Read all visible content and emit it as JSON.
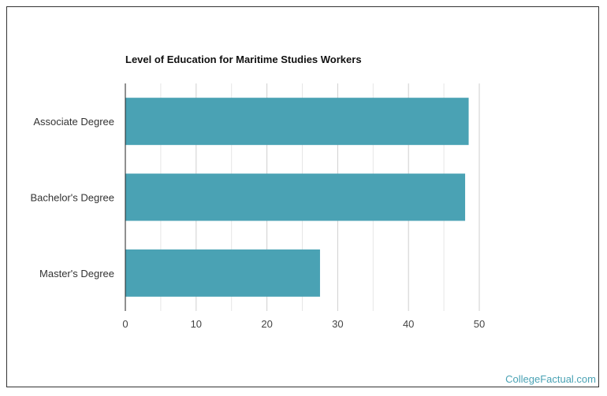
{
  "chart_data": {
    "type": "bar",
    "orientation": "horizontal",
    "title": "Level of Education for Maritime Studies Workers",
    "categories": [
      "Associate Degree",
      "Bachelor's Degree",
      "Master's Degree"
    ],
    "values": [
      48.5,
      48.0,
      27.5
    ],
    "xlim": [
      0,
      50
    ],
    "xticks": [
      "0",
      "10",
      "20",
      "30",
      "40",
      "50"
    ],
    "xlabel": "",
    "ylabel": "",
    "grid": true,
    "bar_color": "#4aa2b4"
  },
  "watermark": "CollegeFactual.com"
}
